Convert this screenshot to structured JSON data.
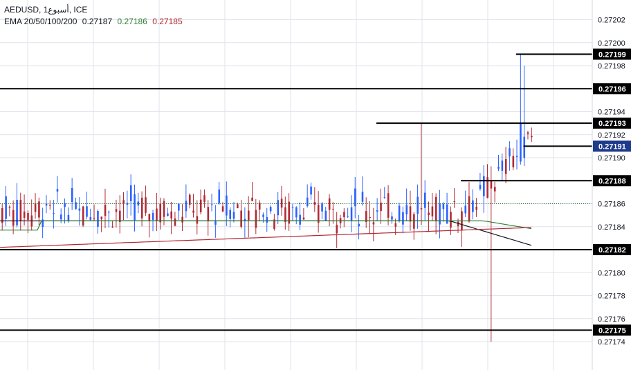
{
  "header": {
    "symbol_line": "AEDUSD, 1أسبوع, ICE",
    "ema_label": "EMA 20/50/100/200",
    "ema_values": [
      "0.27187",
      "0.27186",
      "0.27185"
    ]
  },
  "colors": {
    "bull": "#2962ff",
    "bear": "#b22833",
    "ema20": "#131722",
    "ema50": "#2e7d32",
    "ema100": "#b22833",
    "level_line": "#000000",
    "current_price_bg": "#1e3a8a",
    "grid": "#e0e3eb",
    "last_price_line": "#2e7d32"
  },
  "chart_data": {
    "type": "candlestick",
    "title": "AEDUSD, 1أسبوع, ICE",
    "ylim": [
      0.271735,
      0.272035
    ],
    "y_tick_labels": [
      "0.27202",
      "0.27200",
      "0.27198",
      "0.27194",
      "0.27192",
      "0.27190",
      "0.27186",
      "0.27184",
      "0.27180",
      "0.27178",
      "0.27176",
      "0.27174"
    ],
    "y_ticks": [
      0.27202,
      0.272,
      0.27198,
      0.27194,
      0.27192,
      0.2719,
      0.27186,
      0.27184,
      0.2718,
      0.27178,
      0.27176,
      0.27174
    ],
    "horizontal_levels": [
      {
        "value": 0.27199,
        "label": "0.27199",
        "span": "from-bar-140"
      },
      {
        "value": 0.27196,
        "label": "0.27196",
        "span": "full"
      },
      {
        "value": 0.27193,
        "label": "0.27193",
        "span": "from-bar-102"
      },
      {
        "value": 0.27191,
        "label": "0.27191",
        "span": "from-bar-142",
        "current": true
      },
      {
        "value": 0.27188,
        "label": "0.27188",
        "span": "from-bar-125"
      },
      {
        "value": 0.27182,
        "label": "0.27182",
        "span": "full"
      },
      {
        "value": 0.27175,
        "label": "0.27175",
        "span": "full"
      }
    ],
    "series": [
      {
        "name": "EMA 20",
        "last_value": 0.27187
      },
      {
        "name": "EMA 50",
        "last_value": 0.27186
      },
      {
        "name": "EMA 100",
        "last_value": 0.27185
      }
    ],
    "approximate_bars": 145,
    "price_range_body": [
      0.27183,
      0.27188
    ],
    "notable_wicks": [
      {
        "type": "spike_down",
        "low": 0.27174
      },
      {
        "type": "spike_up",
        "high": 0.27199
      },
      {
        "type": "spike_up",
        "high": 0.27193
      }
    ]
  }
}
